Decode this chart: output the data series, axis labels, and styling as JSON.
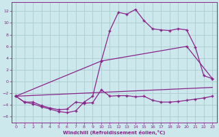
{
  "xlabel": "Windchill (Refroidissement éolien,°C)",
  "background_color": "#cce8ed",
  "grid_color": "#aacccc",
  "line_color": "#882288",
  "xlim": [
    -0.5,
    23.5
  ],
  "ylim": [
    -7,
    13.5
  ],
  "xticks": [
    0,
    1,
    2,
    3,
    4,
    5,
    6,
    7,
    8,
    9,
    10,
    11,
    12,
    13,
    14,
    15,
    16,
    17,
    18,
    19,
    20,
    21,
    22,
    23
  ],
  "yticks": [
    -6,
    -4,
    -2,
    0,
    2,
    4,
    6,
    8,
    10,
    12
  ],
  "curve1_x": [
    0,
    1,
    2,
    3,
    4,
    5,
    6,
    7,
    8,
    9,
    10,
    11,
    12,
    13,
    14,
    15,
    16,
    17,
    18,
    19,
    20,
    21,
    22,
    23
  ],
  "curve1_y": [
    -2.5,
    -3.5,
    -3.8,
    -4.3,
    -4.7,
    -5.1,
    -5.3,
    -5.0,
    -3.5,
    -2.5,
    3.5,
    8.7,
    11.8,
    11.5,
    12.3,
    10.4,
    9.0,
    8.8,
    8.7,
    9.0,
    8.8,
    5.9,
    1.0,
    0.5
  ],
  "curve2_x": [
    0,
    1,
    2,
    3,
    4,
    5,
    6,
    7,
    8,
    9,
    10,
    11,
    12,
    13,
    14,
    15,
    16,
    17,
    18,
    19,
    20,
    21,
    22,
    23
  ],
  "curve2_y": [
    -2.5,
    -3.5,
    -3.5,
    -4.1,
    -4.5,
    -4.8,
    -4.7,
    -3.5,
    -3.7,
    -3.6,
    -1.4,
    -2.5,
    -2.4,
    -2.4,
    -2.6,
    -2.5,
    -3.2,
    -3.5,
    -3.5,
    -3.4,
    -3.2,
    -3.0,
    -2.8,
    -2.5
  ],
  "curve3_x": [
    0,
    23
  ],
  "curve3_y": [
    -2.5,
    -1.0
  ],
  "curve4_x": [
    0,
    10,
    20,
    23
  ],
  "curve4_y": [
    -2.5,
    3.5,
    6.0,
    0.5
  ]
}
